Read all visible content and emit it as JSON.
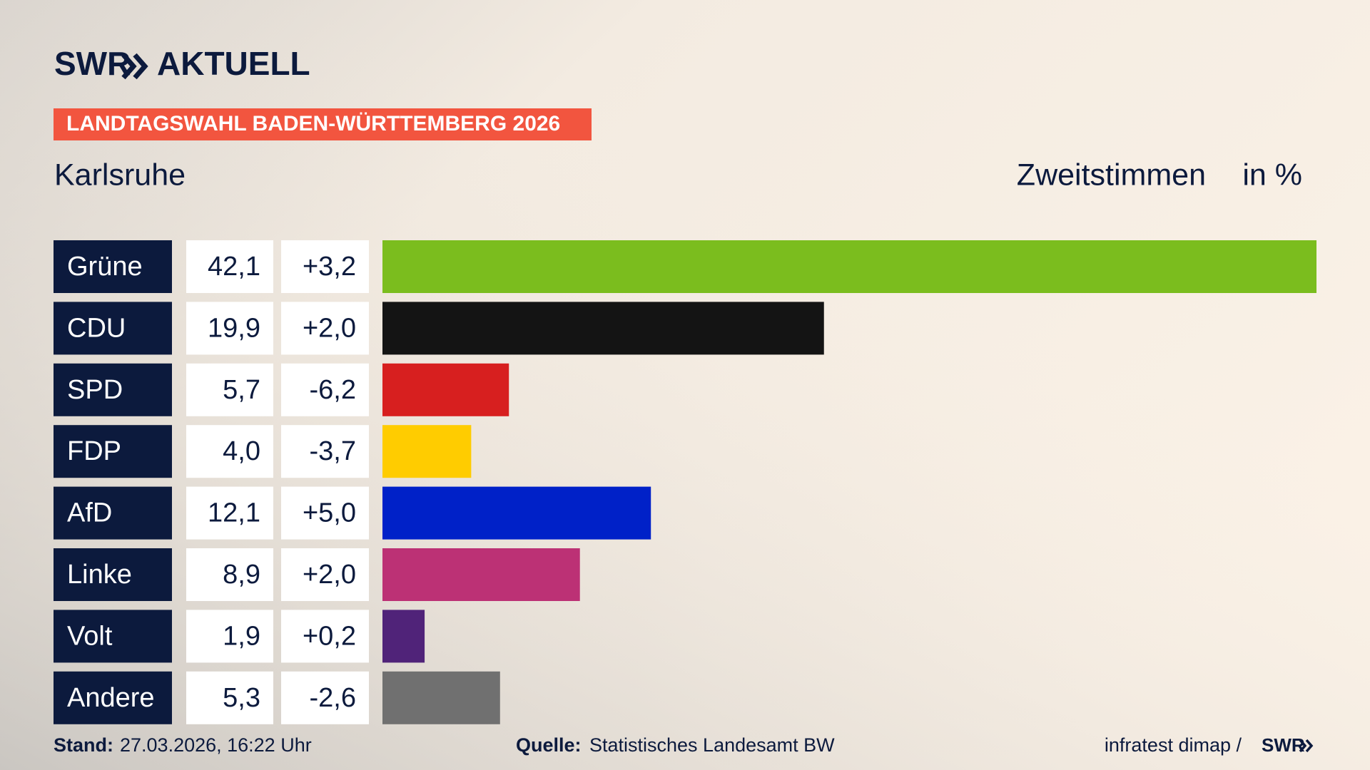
{
  "chart_data": {
    "type": "bar",
    "orientation": "horizontal",
    "brand": "SWR",
    "brand_product": "AKTUELL",
    "banner": "LANDTAGSWAHL BADEN-WÜRTTEMBERG 2026",
    "title": "Karlsruhe",
    "subtitle": "Zweitstimmen",
    "unit": "in %",
    "categories": [
      "Grüne",
      "CDU",
      "SPD",
      "FDP",
      "AfD",
      "Linke",
      "Volt",
      "Andere"
    ],
    "values": [
      42.1,
      19.9,
      5.7,
      4.0,
      12.1,
      8.9,
      1.9,
      5.3
    ],
    "value_labels": [
      "42,1",
      "19,9",
      "5,7",
      "4,0",
      "12,1",
      "8,9",
      "1,9",
      "5,3"
    ],
    "changes": [
      3.2,
      2.0,
      -6.2,
      -3.7,
      5.0,
      2.0,
      0.2,
      -2.6
    ],
    "change_labels": [
      "+3,2",
      "+2,0",
      "-6,2",
      "-3,7",
      "+5,0",
      "+2,0",
      "+0,2",
      "-2,6"
    ],
    "colors": [
      "#7bbd1e",
      "#141414",
      "#d71f1f",
      "#ffcc00",
      "#0021c8",
      "#bc3175",
      "#502379",
      "#707070"
    ],
    "footer": {
      "stand_label": "Stand:",
      "stand": "27.03.2026, 16:22 Uhr",
      "source_label": "Quelle:",
      "source": "Statistisches Landesamt BW",
      "institute": "infratest dimap /",
      "institute_brand": "SWR"
    }
  }
}
